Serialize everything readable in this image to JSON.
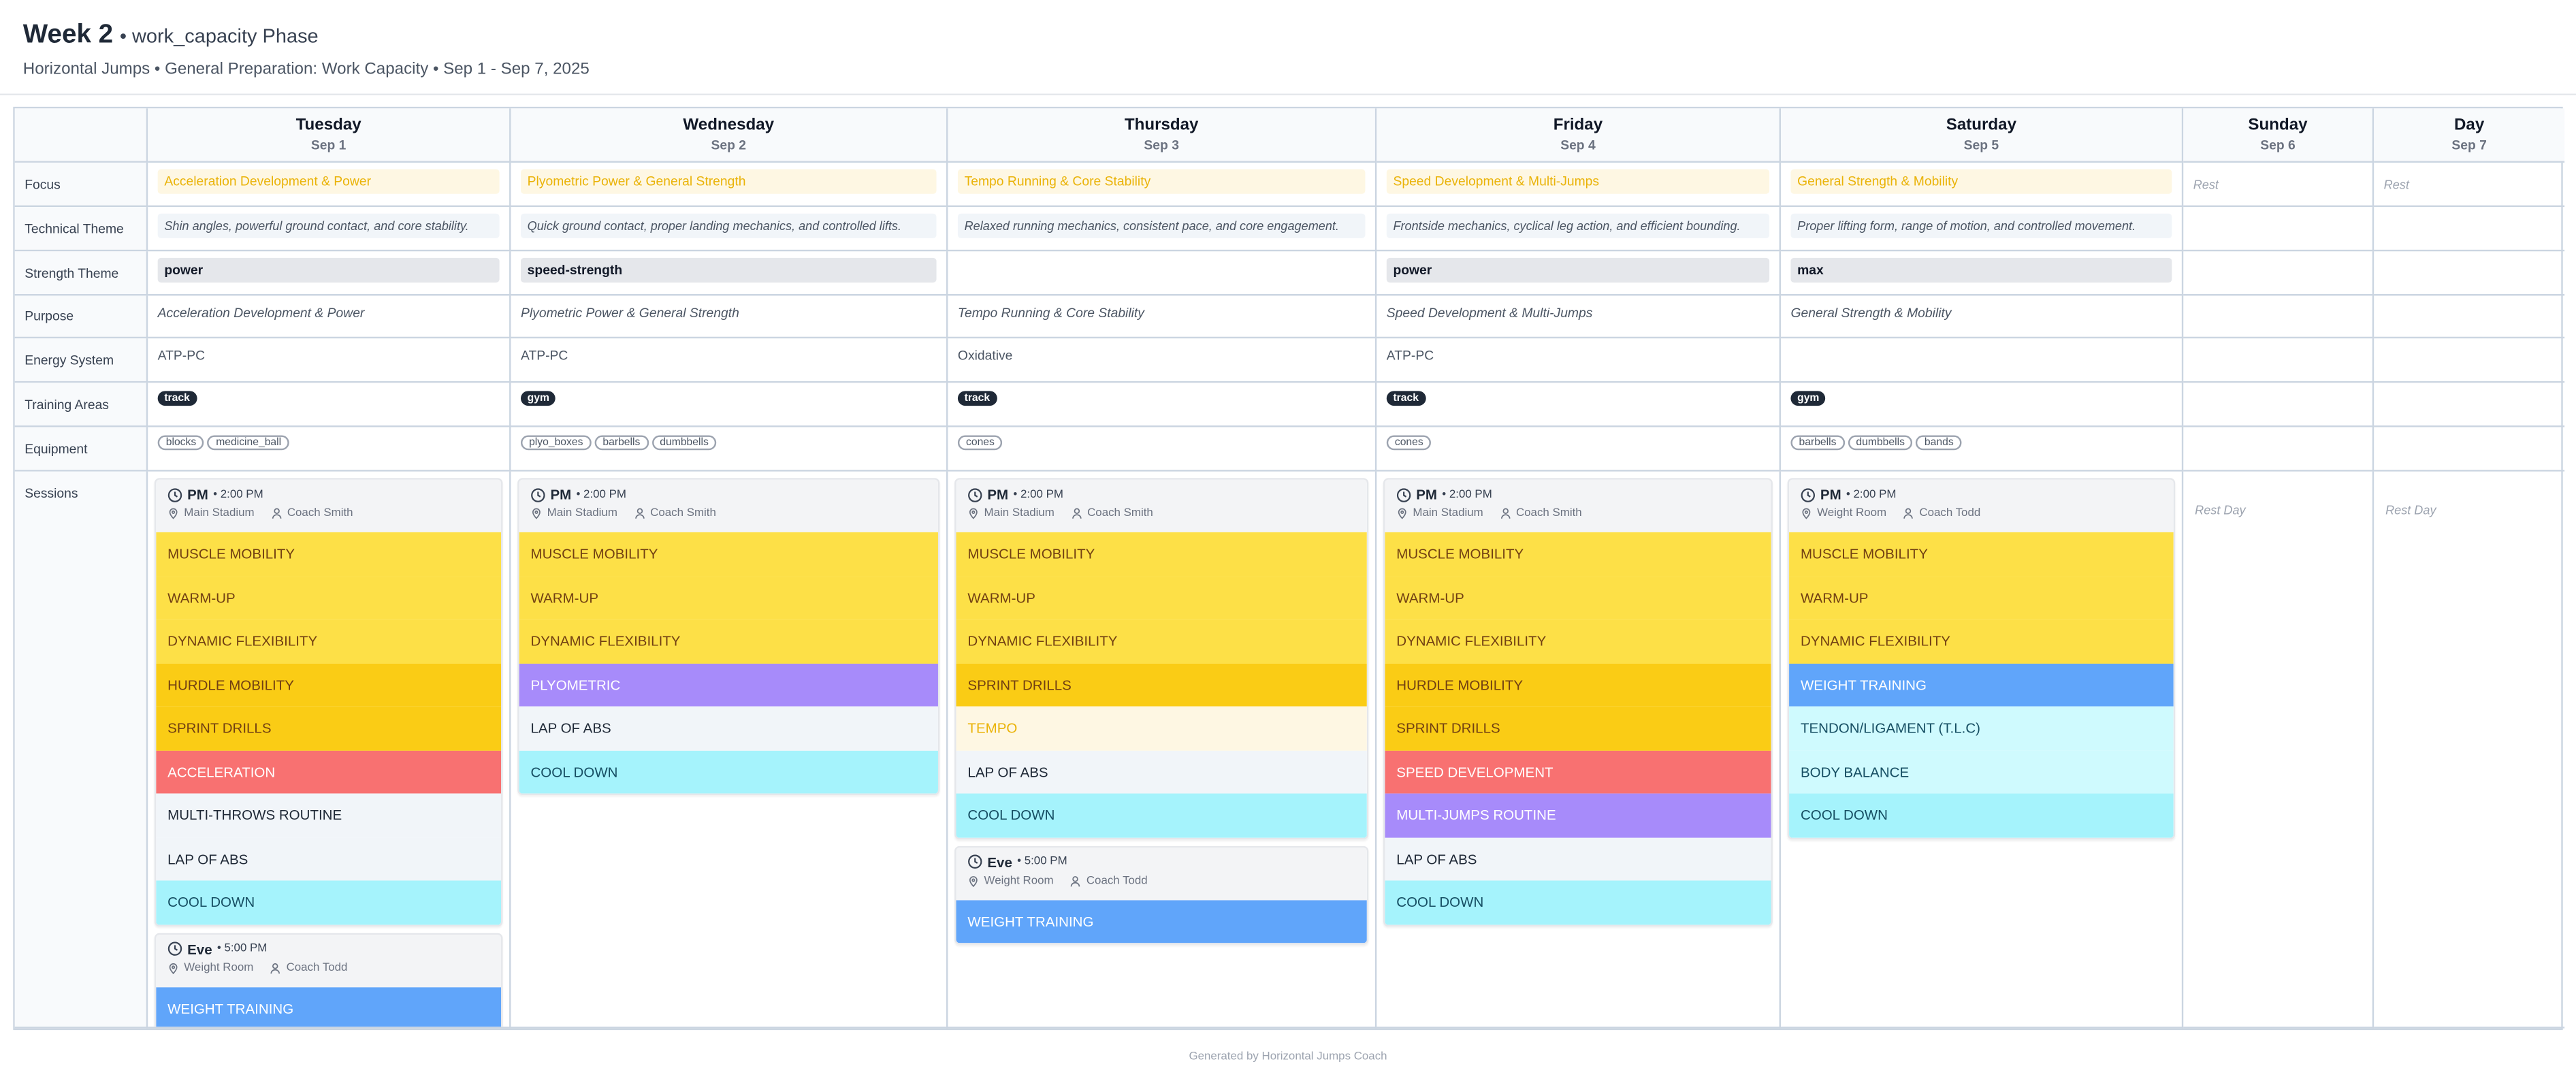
{
  "header": {
    "title": "Week 2",
    "phase": "• work_capacity Phase",
    "subtitle": "Horizontal Jumps • General Preparation: Work Capacity • Sep 1 - Sep 7, 2025"
  },
  "row_labels": [
    "Focus",
    "Technical Theme",
    "Strength Theme",
    "Purpose",
    "Energy System",
    "Training Areas",
    "Equipment",
    "Sessions"
  ],
  "palette": [
    {
      "bg": "#fde047",
      "fg": "#713f12"
    },
    {
      "bg": "#facc15",
      "fg": "#713f12"
    },
    {
      "bg": "#f87171",
      "fg": "#ffffff"
    },
    {
      "bg": "#f1f5f9",
      "fg": "#1f2937"
    },
    {
      "bg": "#a5f3fc",
      "fg": "#164e63"
    },
    {
      "bg": "#a78bfa",
      "fg": "#ffffff"
    },
    {
      "bg": "#60a5fa",
      "fg": "#ffffff"
    },
    {
      "bg": "#fef7e3",
      "fg": "#eab308"
    },
    {
      "bg": "#cffafe",
      "fg": "#164e63"
    }
  ],
  "days": [
    {
      "day": "Tuesday",
      "date": "Sep 1",
      "focus": "Acceleration Development & Power",
      "technical_theme": "Shin angles, powerful ground contact, and core stability.",
      "strength_theme": "power",
      "purpose": "Acceleration Development & Power",
      "energy_system": "ATP-PC",
      "training_areas": [
        "track"
      ],
      "equipment": [
        "blocks",
        "medicine_ball"
      ],
      "sessions": [
        {
          "label": "PM",
          "time": "• 2:00 PM",
          "location": "Main Stadium",
          "coach": "Coach Smith",
          "activities": [
            {
              "name": "MUSCLE MOBILITY",
              "style": 0
            },
            {
              "name": "WARM-UP",
              "style": 0
            },
            {
              "name": "DYNAMIC FLEXIBILITY",
              "style": 0
            },
            {
              "name": "HURDLE MOBILITY",
              "style": 1
            },
            {
              "name": "SPRINT DRILLS",
              "style": 1
            },
            {
              "name": "ACCELERATION",
              "style": 2
            },
            {
              "name": "MULTI-THROWS ROUTINE",
              "style": 3
            },
            {
              "name": "LAP OF ABS",
              "style": 3
            },
            {
              "name": "COOL DOWN",
              "style": 4
            }
          ]
        },
        {
          "label": "Eve",
          "time": "• 5:00 PM",
          "location": "Weight Room",
          "coach": "Coach Todd",
          "activities": [
            {
              "name": "WEIGHT TRAINING",
              "style": 6
            }
          ]
        }
      ]
    },
    {
      "day": "Wednesday",
      "date": "Sep 2",
      "focus": "Plyometric Power & General Strength",
      "technical_theme": "Quick ground contact, proper landing mechanics, and controlled lifts.",
      "strength_theme": "speed-strength",
      "purpose": "Plyometric Power & General Strength",
      "energy_system": "ATP-PC",
      "training_areas": [
        "gym"
      ],
      "equipment": [
        "plyo_boxes",
        "barbells",
        "dumbbells"
      ],
      "sessions": [
        {
          "label": "PM",
          "time": "• 2:00 PM",
          "location": "Main Stadium",
          "coach": "Coach Smith",
          "activities": [
            {
              "name": "MUSCLE MOBILITY",
              "style": 0
            },
            {
              "name": "WARM-UP",
              "style": 0
            },
            {
              "name": "DYNAMIC FLEXIBILITY",
              "style": 0
            },
            {
              "name": "PLYOMETRIC",
              "style": 5
            },
            {
              "name": "LAP OF ABS",
              "style": 3
            },
            {
              "name": "COOL DOWN",
              "style": 4
            }
          ]
        }
      ]
    },
    {
      "day": "Thursday",
      "date": "Sep 3",
      "focus": "Tempo Running & Core Stability",
      "technical_theme": "Relaxed running mechanics, consistent pace, and core engagement.",
      "purpose": "Tempo Running & Core Stability",
      "energy_system": "Oxidative",
      "training_areas": [
        "track"
      ],
      "equipment": [
        "cones"
      ],
      "sessions": [
        {
          "label": "PM",
          "time": "• 2:00 PM",
          "location": "Main Stadium",
          "coach": "Coach Smith",
          "activities": [
            {
              "name": "MUSCLE MOBILITY",
              "style": 0
            },
            {
              "name": "WARM-UP",
              "style": 0
            },
            {
              "name": "DYNAMIC FLEXIBILITY",
              "style": 0
            },
            {
              "name": "SPRINT DRILLS",
              "style": 1
            },
            {
              "name": "TEMPO",
              "style": 7
            },
            {
              "name": "LAP OF ABS",
              "style": 3
            },
            {
              "name": "COOL DOWN",
              "style": 4
            }
          ]
        },
        {
          "label": "Eve",
          "time": "• 5:00 PM",
          "location": "Weight Room",
          "coach": "Coach Todd",
          "activities": [
            {
              "name": "WEIGHT TRAINING",
              "style": 6
            }
          ]
        }
      ]
    },
    {
      "day": "Friday",
      "date": "Sep 4",
      "focus": "Speed Development & Multi-Jumps",
      "technical_theme": "Frontside mechanics, cyclical leg action, and efficient bounding.",
      "strength_theme": "power",
      "purpose": "Speed Development & Multi-Jumps",
      "energy_system": "ATP-PC",
      "training_areas": [
        "track"
      ],
      "equipment": [
        "cones"
      ],
      "sessions": [
        {
          "label": "PM",
          "time": "• 2:00 PM",
          "location": "Main Stadium",
          "coach": "Coach Smith",
          "activities": [
            {
              "name": "MUSCLE MOBILITY",
              "style": 0
            },
            {
              "name": "WARM-UP",
              "style": 0
            },
            {
              "name": "DYNAMIC FLEXIBILITY",
              "style": 0
            },
            {
              "name": "HURDLE MOBILITY",
              "style": 1
            },
            {
              "name": "SPRINT DRILLS",
              "style": 1
            },
            {
              "name": "SPEED DEVELOPMENT",
              "style": 2
            },
            {
              "name": "MULTI-JUMPS ROUTINE",
              "style": 5
            },
            {
              "name": "LAP OF ABS",
              "style": 3
            },
            {
              "name": "COOL DOWN",
              "style": 4
            }
          ]
        }
      ]
    },
    {
      "day": "Saturday",
      "date": "Sep 5",
      "focus": "General Strength & Mobility",
      "technical_theme": "Proper lifting form, range of motion, and controlled movement.",
      "strength_theme": "max",
      "purpose": "General Strength & Mobility",
      "training_areas": [
        "gym"
      ],
      "equipment": [
        "barbells",
        "dumbbells",
        "bands"
      ],
      "sessions": [
        {
          "label": "PM",
          "time": "• 2:00 PM",
          "location": "Weight Room",
          "coach": "Coach Todd",
          "activities": [
            {
              "name": "MUSCLE MOBILITY",
              "style": 0
            },
            {
              "name": "WARM-UP",
              "style": 0
            },
            {
              "name": "DYNAMIC FLEXIBILITY",
              "style": 0
            },
            {
              "name": "WEIGHT TRAINING",
              "style": 6
            },
            {
              "name": "TENDON/LIGAMENT (T.L.C)",
              "style": 8
            },
            {
              "name": "BODY BALANCE",
              "style": 8
            },
            {
              "name": "COOL DOWN",
              "style": 4
            }
          ]
        }
      ]
    },
    {
      "day": "Sunday",
      "date": "Sep 6",
      "focus": "Rest",
      "rest_note": "Rest Day"
    },
    {
      "day": "Day",
      "date": "Sep 7",
      "focus": "Rest",
      "rest_note": "Rest Day"
    }
  ],
  "footer": "Generated by Horizontal Jumps Coach"
}
